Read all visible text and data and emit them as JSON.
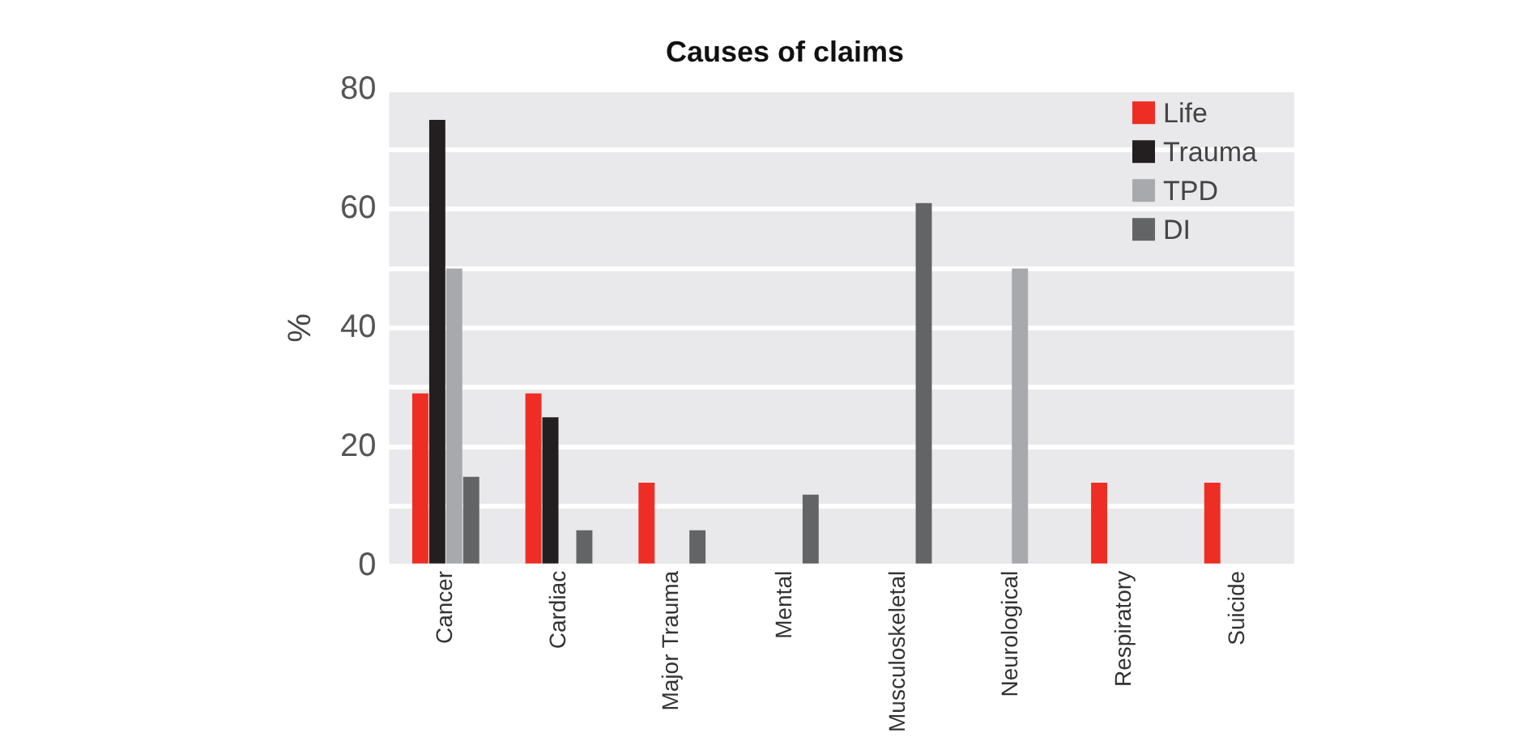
{
  "chart_data": {
    "type": "bar",
    "title": "Causes of claims",
    "ylabel": "%",
    "categories": [
      "Cancer",
      "Cardiac",
      "Major Trauma",
      "Mental",
      "Musculoskeletal",
      "Neurological",
      "Respiratory",
      "Suicide"
    ],
    "series": [
      {
        "name": "Life",
        "color": "#ee2e24",
        "values": [
          29,
          29,
          14,
          null,
          null,
          null,
          14,
          14
        ]
      },
      {
        "name": "Trauma",
        "color": "#231f20",
        "values": [
          75,
          25,
          null,
          null,
          null,
          null,
          null,
          null
        ]
      },
      {
        "name": "TPD",
        "color": "#a7a9ac",
        "values": [
          50,
          null,
          null,
          null,
          null,
          50,
          null,
          null
        ]
      },
      {
        "name": "DI",
        "color": "#636466",
        "values": [
          15,
          6,
          6,
          12,
          61,
          null,
          null,
          null
        ]
      }
    ],
    "ylim": [
      0,
      80
    ],
    "yticks": [
      0,
      {
        "value": 10,
        "label": null
      },
      20,
      {
        "value": 30,
        "label": null
      },
      40,
      {
        "value": 50,
        "label": null
      },
      60,
      {
        "value": 70,
        "label": null
      },
      80
    ],
    "grid": "y",
    "legend": "top right"
  }
}
